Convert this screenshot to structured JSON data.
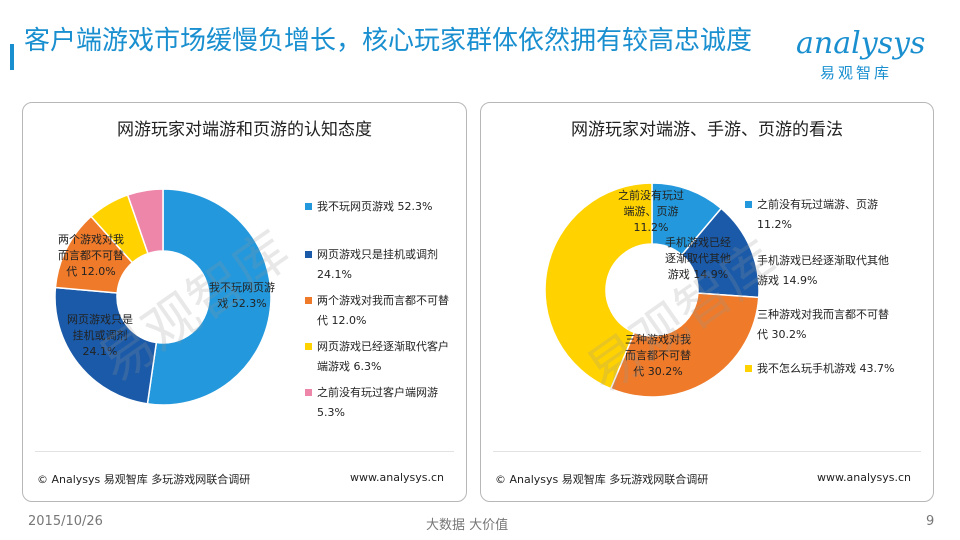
{
  "header": {
    "title": "客户端游戏市场缓慢负增长，核心玩家群体依然拥有较高忠诚度",
    "logo_word": "analysys",
    "logo_sub": "易观智库"
  },
  "watermark": "易观智库",
  "panels": [
    {
      "title": "网游玩家对端游和页游的认知态度",
      "footer_left": "© Analysys 易观智库 多玩游戏网联合调研",
      "footer_right": "www.analysys.cn",
      "legend": [
        {
          "text": "我不玩网页游戏  52.3%",
          "color": "#2398dc"
        },
        {
          "text": "网页游戏只是挂机或调剂\n24.1%",
          "color": "#1a5aa8"
        },
        {
          "text": "两个游戏对我而言都不可替\n代  12.0%",
          "color": "#ee7a2a"
        },
        {
          "text": "网页游戏已经逐渐取代客户\n端游戏  6.3%",
          "color": "#ffd200"
        },
        {
          "text": "之前没有玩过客户端网游\n5.3%",
          "color": "#ee86a9"
        }
      ],
      "slice_labels": [
        "我不玩网页游\n戏  52.3%",
        "网页游戏只是\n挂机或调剂\n24.1%",
        "两个游戏对我\n而言都不可替\n代  12.0%",
        "",
        ""
      ]
    },
    {
      "title": "网游玩家对端游、手游、页游的看法",
      "footer_left": "© Analysys 易观智库 多玩游戏网联合调研",
      "footer_right": "www.analysys.cn",
      "legend": [
        {
          "text": "之前没有玩过端游、页游\n11.2%",
          "color": "#2398dc"
        },
        {
          "text": "手机游戏已经逐渐取代其他\n游戏  14.9%",
          "color": "#1a5aa8"
        },
        {
          "text": "三种游戏对我而言都不可替\n代  30.2%",
          "color": "#ee7a2a"
        },
        {
          "text": "我不怎么玩手机游戏  43.7%",
          "color": "#ffd200"
        }
      ],
      "slice_labels": [
        "之前没有玩过\n端游、页游\n11.2%",
        "手机游戏已经\n逐渐取代其他\n游戏  14.9%",
        "三种游戏对我\n而言都不可替\n代  30.2%",
        ""
      ]
    }
  ],
  "chart_data": [
    {
      "type": "pie",
      "title": "网游玩家对端游和页游的认知态度",
      "categories": [
        "我不玩网页游戏",
        "网页游戏只是挂机或调剂",
        "两个游戏对我而言都不可替代",
        "网页游戏已经逐渐取代客户端游戏",
        "之前没有玩过客户端网游"
      ],
      "values": [
        52.3,
        24.1,
        12.0,
        6.3,
        5.3
      ],
      "colors": [
        "#2398dc",
        "#1a5aa8",
        "#ee7a2a",
        "#ffd200",
        "#ee86a9"
      ],
      "unit": "%"
    },
    {
      "type": "pie",
      "title": "网游玩家对端游、手游、页游的看法",
      "categories": [
        "之前没有玩过端游、页游",
        "手机游戏已经逐渐取代其他游戏",
        "三种游戏对我而言都不可替代",
        "我不怎么玩手机游戏"
      ],
      "values": [
        11.2,
        14.9,
        30.2,
        43.7
      ],
      "colors": [
        "#2398dc",
        "#1a5aa8",
        "#ee7a2a",
        "#ffd200"
      ],
      "unit": "%"
    }
  ],
  "bottom": {
    "date": "2015/10/26",
    "slogan": "大数据   大价值",
    "page": "9"
  }
}
